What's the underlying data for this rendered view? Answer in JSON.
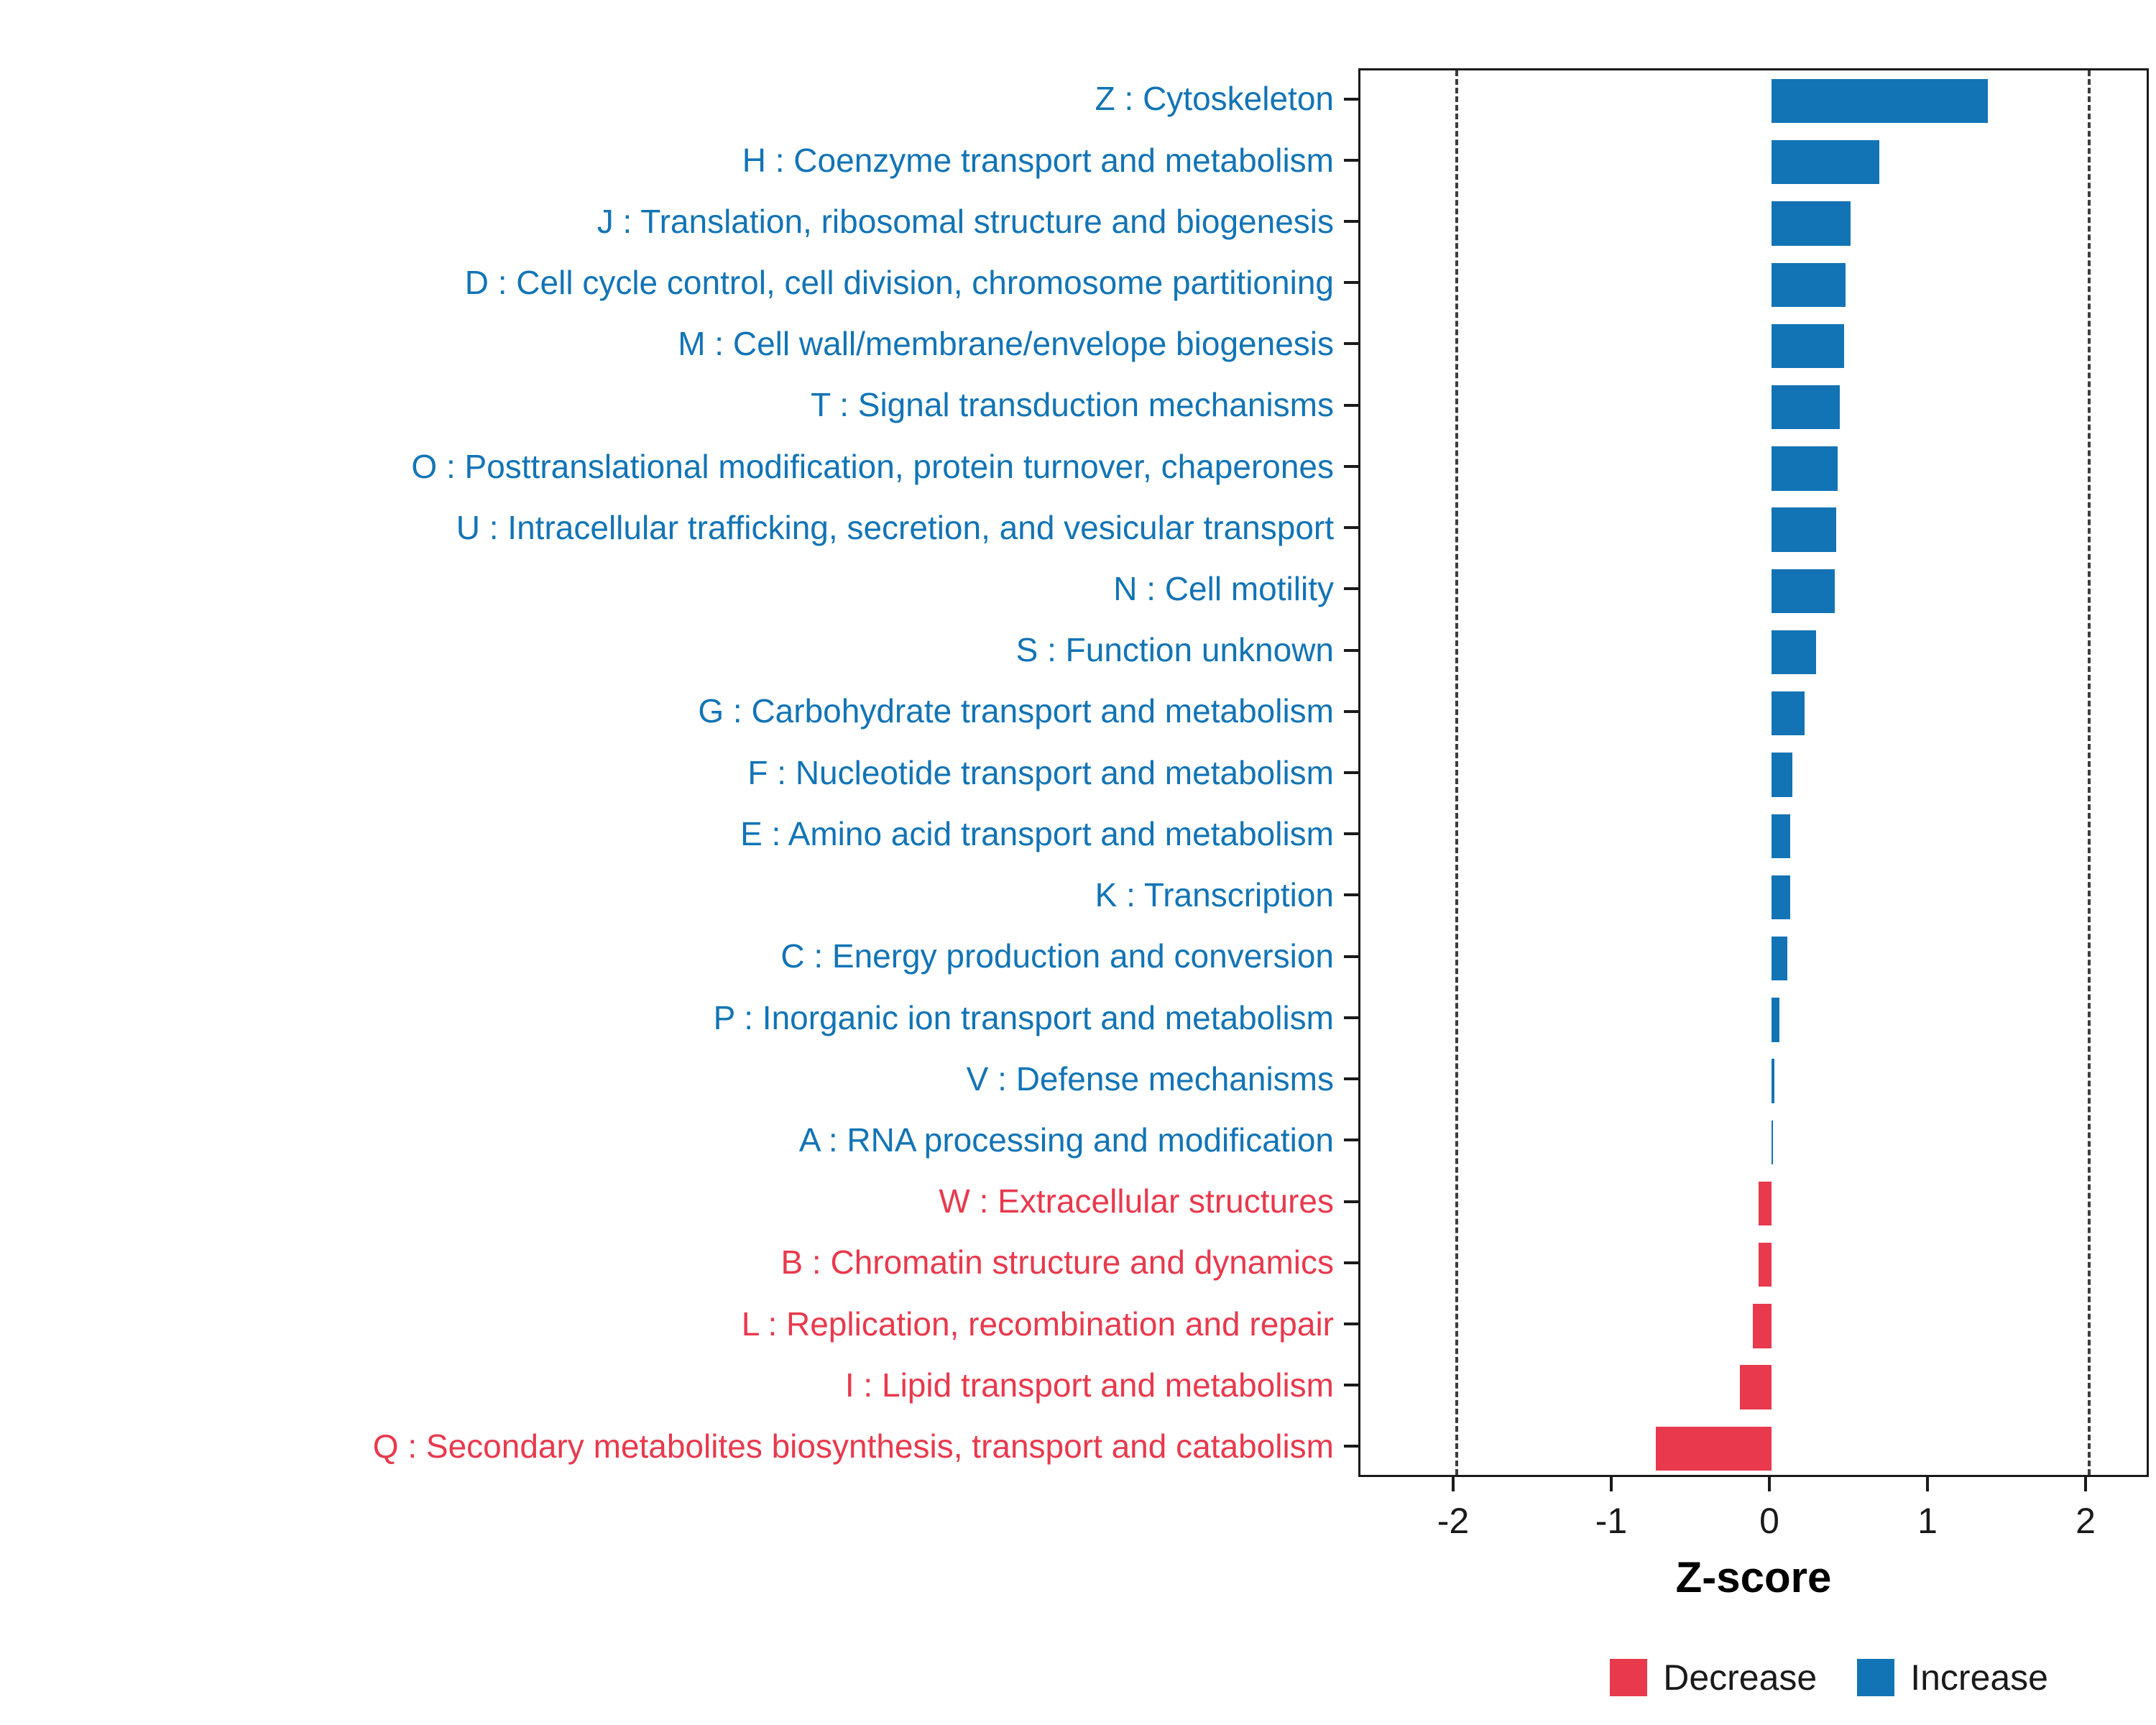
{
  "figure": {
    "background": "#ffffff"
  },
  "colors": {
    "increase": "#1274B5",
    "decrease": "#E8394D",
    "panel_border": "#1a1a1a",
    "dashed_line": "#3c3c3c"
  },
  "axis": {
    "x_title": "Z-score"
  },
  "legend": {
    "items": [
      {
        "label": "Decrease",
        "color": "#E8394D"
      },
      {
        "label": "Increase",
        "color": "#1274B5"
      }
    ]
  },
  "chart_data": {
    "type": "bar",
    "orientation": "horizontal",
    "title": "",
    "xlabel": "Z-score",
    "ylabel": "",
    "xlim": [
      -2.6,
      2.4
    ],
    "x_ticks": [
      {
        "value": -2,
        "label": "-2"
      },
      {
        "value": -1,
        "label": "-1"
      },
      {
        "value": 0,
        "label": "0"
      },
      {
        "value": 1,
        "label": "1"
      },
      {
        "value": 2,
        "label": "2"
      }
    ],
    "dashed_lines": [
      -2,
      2
    ],
    "grid": false,
    "legend_position": "bottom-right",
    "legend_entries": [
      "Decrease",
      "Increase"
    ],
    "categories": [
      "Z : Cytoskeleton",
      "H : Coenzyme transport and metabolism",
      "J : Translation, ribosomal structure and biogenesis",
      "D : Cell cycle control, cell division, chromosome partitioning",
      "M : Cell wall/membrane/envelope biogenesis",
      "T : Signal transduction mechanisms",
      "O : Posttranslational modification, protein turnover, chaperones",
      "U : Intracellular trafficking, secretion, and vesicular transport",
      "N : Cell motility",
      "S : Function unknown",
      "G : Carbohydrate transport and metabolism",
      "F : Nucleotide transport and metabolism",
      "E : Amino acid transport and metabolism",
      "K : Transcription",
      "C : Energy production and conversion",
      "P : Inorganic ion transport and metabolism",
      "V : Defense mechanisms",
      "A : RNA processing and modification",
      "W : Extracellular structures",
      "B : Chromatin structure and dynamics",
      "L : Replication, recombination and repair",
      "I : Lipid transport and metabolism",
      "Q : Secondary metabolites biosynthesis, transport and catabolism"
    ],
    "values": [
      1.37,
      0.68,
      0.5,
      0.47,
      0.46,
      0.43,
      0.42,
      0.41,
      0.4,
      0.28,
      0.21,
      0.13,
      0.12,
      0.12,
      0.1,
      0.05,
      0.02,
      0.01,
      -0.08,
      -0.08,
      -0.12,
      -0.2,
      -0.73
    ],
    "directions": [
      "increase",
      "increase",
      "increase",
      "increase",
      "increase",
      "increase",
      "increase",
      "increase",
      "increase",
      "increase",
      "increase",
      "increase",
      "increase",
      "increase",
      "increase",
      "increase",
      "increase",
      "increase",
      "decrease",
      "decrease",
      "decrease",
      "decrease",
      "decrease"
    ]
  }
}
